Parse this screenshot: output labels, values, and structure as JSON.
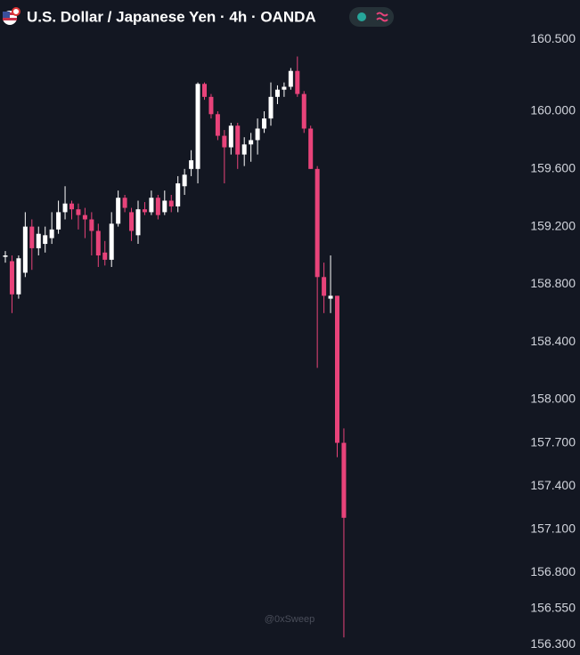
{
  "chart_data": {
    "type": "candlestick",
    "title": "U.S. Dollar / Japanese Yen · 4h · OANDA",
    "watermark": "@0xSweep",
    "up_color": "#ffffff",
    "down_color": "#e8437a",
    "open": [
      158.99,
      158.96,
      158.73,
      158.88,
      159.2,
      159.05,
      159.08,
      159.12,
      159.18,
      159.3,
      159.36,
      159.32,
      159.28,
      159.25,
      159.17,
      159.02,
      158.97,
      159.22,
      159.4,
      159.3,
      159.14,
      159.32,
      159.3,
      159.4,
      159.3,
      159.38,
      159.34,
      159.48,
      159.6,
      159.6,
      160.19,
      160.1,
      159.98,
      159.83,
      159.75,
      159.9,
      159.7,
      159.77,
      159.8,
      159.88,
      159.95,
      160.1,
      160.15,
      160.17,
      160.28,
      160.12,
      159.88,
      159.6,
      158.85,
      158.7,
      158.72,
      157.7
    ],
    "high": [
      159.03,
      159.0,
      159.0,
      159.3,
      159.25,
      159.2,
      159.2,
      159.3,
      159.38,
      159.48,
      159.38,
      159.36,
      159.33,
      159.3,
      159.22,
      159.1,
      159.3,
      159.45,
      159.42,
      159.33,
      159.38,
      159.37,
      159.45,
      159.42,
      159.45,
      159.42,
      159.55,
      159.6,
      159.73,
      160.2,
      160.2,
      160.12,
      160.0,
      159.87,
      159.92,
      159.92,
      159.82,
      159.85,
      159.95,
      160.0,
      160.2,
      160.18,
      160.2,
      160.3,
      160.38,
      160.14,
      159.9,
      159.62,
      158.95,
      159.0,
      158.72,
      157.8
    ],
    "low": [
      158.95,
      158.6,
      158.7,
      158.85,
      158.9,
      159.0,
      159.02,
      159.08,
      159.15,
      159.25,
      159.25,
      159.18,
      159.12,
      159.0,
      158.92,
      158.93,
      158.92,
      159.2,
      159.3,
      159.1,
      159.08,
      159.28,
      159.28,
      159.25,
      159.28,
      159.3,
      159.3,
      159.42,
      159.55,
      159.5,
      160.08,
      159.95,
      159.8,
      159.5,
      159.7,
      159.6,
      159.62,
      159.65,
      159.7,
      159.85,
      159.9,
      160.05,
      160.1,
      160.15,
      160.1,
      159.85,
      159.6,
      158.22,
      158.6,
      158.6,
      157.6,
      156.35
    ],
    "close": [
      159.0,
      158.73,
      158.98,
      159.2,
      159.05,
      159.15,
      159.14,
      159.18,
      159.3,
      159.36,
      159.32,
      159.28,
      159.25,
      159.17,
      159.0,
      158.97,
      159.22,
      159.4,
      159.33,
      159.17,
      159.32,
      159.3,
      159.4,
      159.28,
      159.38,
      159.34,
      159.5,
      159.56,
      159.66,
      160.19,
      160.1,
      159.98,
      159.83,
      159.75,
      159.9,
      159.7,
      159.77,
      159.8,
      159.88,
      159.95,
      160.1,
      160.15,
      160.17,
      160.28,
      160.12,
      159.88,
      159.6,
      158.85,
      158.72,
      158.72,
      157.7,
      157.18
    ],
    "ylim": [
      156.228,
      160.772
    ],
    "yticks": [
      {
        "value": 160.5,
        "label": "160.500"
      },
      {
        "value": 160,
        "label": "160.000"
      },
      {
        "value": 159.6,
        "label": "159.600"
      },
      {
        "value": 159.2,
        "label": "159.200"
      },
      {
        "value": 158.8,
        "label": "158.800"
      },
      {
        "value": 158.4,
        "label": "158.400"
      },
      {
        "value": 158,
        "label": "158.000"
      },
      {
        "value": 157.7,
        "label": "157.700"
      },
      {
        "value": 157.4,
        "label": "157.400"
      },
      {
        "value": 157.1,
        "label": "157.100"
      },
      {
        "value": 156.8,
        "label": "156.800"
      },
      {
        "value": 156.55,
        "label": "156.550"
      },
      {
        "value": 156.3,
        "label": "156.300"
      }
    ]
  }
}
